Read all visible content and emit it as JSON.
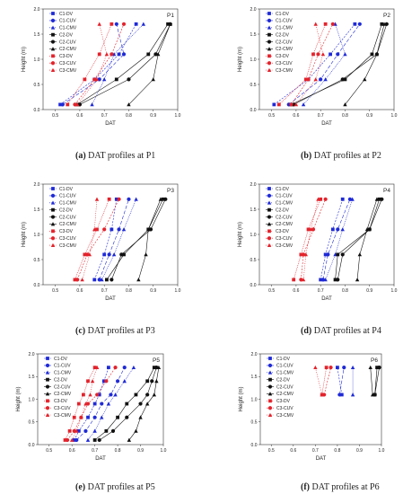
{
  "legend_entries": [
    {
      "label": "C1-DV",
      "color": "#1f2ad6",
      "dash": "2,1.5",
      "marker": "square"
    },
    {
      "label": "C1-CUV",
      "color": "#1f2ad6",
      "dash": "4,2",
      "marker": "circle"
    },
    {
      "label": "C1-CMV",
      "color": "#1f2ad6",
      "dash": "1,1",
      "marker": "triangle"
    },
    {
      "label": "C2-DV",
      "color": "#111111",
      "dash": "",
      "marker": "square"
    },
    {
      "label": "C2-CUV",
      "color": "#111111",
      "dash": "",
      "marker": "circle"
    },
    {
      "label": "C2-CMV",
      "color": "#111111",
      "dash": "",
      "marker": "triangle"
    },
    {
      "label": "C3-DV",
      "color": "#e3232c",
      "dash": "1,1",
      "marker": "square"
    },
    {
      "label": "C3-CUV",
      "color": "#e3232c",
      "dash": "2,1.5",
      "marker": "circle"
    },
    {
      "label": "C3-CMV",
      "color": "#e3232c",
      "dash": "1,1.5",
      "marker": "triangle"
    }
  ],
  "chart_data": [
    {
      "type": "line",
      "panel_label": "P1",
      "caption_letter": "(a)",
      "caption_text": "DAT profiles at P1",
      "xlabel": "DAT",
      "ylabel": "Height (m)",
      "xlim": [
        0.45,
        1.0
      ],
      "ylim": [
        0.0,
        2.0
      ],
      "xticks": [
        "0.5",
        "0.6",
        "0.7",
        "0.8",
        "0.9",
        "1.0"
      ],
      "yticks": [
        "0.0",
        "0.5",
        "1.0",
        "1.5",
        "2.0"
      ],
      "heights": [
        0.1,
        0.6,
        1.1,
        1.7
      ],
      "series": [
        {
          "name": "C1-DV",
          "x": [
            0.52,
            0.66,
            0.76,
            0.83
          ]
        },
        {
          "name": "C1-CUV",
          "x": [
            0.53,
            0.68,
            0.78,
            0.75
          ]
        },
        {
          "name": "C1-CMV",
          "x": [
            0.65,
            0.7,
            0.74,
            0.86
          ]
        },
        {
          "name": "C2-DV",
          "x": [
            0.59,
            0.75,
            0.88,
            0.96
          ]
        },
        {
          "name": "C2-CUV",
          "x": [
            0.6,
            0.8,
            0.91,
            0.97
          ]
        },
        {
          "name": "C2-CMV",
          "x": [
            0.8,
            0.9,
            0.92,
            0.97
          ]
        },
        {
          "name": "C3-DV",
          "x": [
            0.55,
            0.62,
            0.68,
            0.73
          ]
        },
        {
          "name": "C3-CUV",
          "x": [
            0.58,
            0.66,
            0.73,
            0.78
          ]
        },
        {
          "name": "C3-CMV",
          "x": [
            0.59,
            0.67,
            0.71,
            0.68
          ]
        }
      ]
    },
    {
      "type": "line",
      "panel_label": "P2",
      "caption_letter": "(b)",
      "caption_text": "DAT profiles at P2",
      "xlabel": "DAT",
      "ylabel": "Height (m)",
      "xlim": [
        0.45,
        1.0
      ],
      "ylim": [
        0.0,
        2.0
      ],
      "xticks": [
        "0.5",
        "0.6",
        "0.7",
        "0.8",
        "0.9",
        "1.0"
      ],
      "yticks": [
        "0.0",
        "0.5",
        "1.0",
        "1.5",
        "2.0"
      ],
      "heights": [
        0.1,
        0.6,
        1.1,
        1.7
      ],
      "series": [
        {
          "name": "C1-DV",
          "x": [
            0.51,
            0.65,
            0.74,
            0.84
          ]
        },
        {
          "name": "C1-CUV",
          "x": [
            0.57,
            0.7,
            0.77,
            0.86
          ]
        },
        {
          "name": "C1-CMV",
          "x": [
            0.63,
            0.72,
            0.8,
            0.76
          ]
        },
        {
          "name": "C2-DV",
          "x": [
            0.58,
            0.8,
            0.91,
            0.95
          ]
        },
        {
          "name": "C2-CUV",
          "x": [
            0.59,
            0.79,
            0.93,
            0.97
          ]
        },
        {
          "name": "C2-CMV",
          "x": [
            0.8,
            0.88,
            0.93,
            0.96
          ]
        },
        {
          "name": "C3-DV",
          "x": [
            0.53,
            0.64,
            0.67,
            0.72
          ]
        },
        {
          "name": "C3-CUV",
          "x": [
            0.58,
            0.65,
            0.69,
            0.75
          ]
        },
        {
          "name": "C3-CMV",
          "x": [
            0.6,
            0.68,
            0.71,
            0.68
          ]
        }
      ]
    },
    {
      "type": "line",
      "panel_label": "P3",
      "caption_letter": "(c)",
      "caption_text": "DAT profiles at P3",
      "xlabel": "DAT",
      "ylabel": "Height (m)",
      "xlim": [
        0.45,
        1.0
      ],
      "ylim": [
        0.0,
        2.0
      ],
      "xticks": [
        "0.5",
        "0.6",
        "0.7",
        "0.8",
        "0.9",
        "1.0"
      ],
      "yticks": [
        "0.0",
        "0.5",
        "1.0",
        "1.5",
        "2.0"
      ],
      "heights": [
        0.1,
        0.6,
        1.1,
        1.7
      ],
      "series": [
        {
          "name": "C1-DV",
          "x": [
            0.66,
            0.7,
            0.73,
            0.75
          ]
        },
        {
          "name": "C1-CUV",
          "x": [
            0.68,
            0.72,
            0.76,
            0.8
          ]
        },
        {
          "name": "C1-CMV",
          "x": [
            0.69,
            0.74,
            0.78,
            0.83
          ]
        },
        {
          "name": "C2-DV",
          "x": [
            0.71,
            0.78,
            0.88,
            0.94
          ]
        },
        {
          "name": "C2-CUV",
          "x": [
            0.73,
            0.77,
            0.89,
            0.95
          ]
        },
        {
          "name": "C2-CMV",
          "x": [
            0.84,
            0.87,
            0.88,
            0.93
          ]
        },
        {
          "name": "C3-DV",
          "x": [
            0.58,
            0.62,
            0.67,
            0.72
          ]
        },
        {
          "name": "C3-CUV",
          "x": [
            0.59,
            0.63,
            0.7,
            0.76
          ]
        },
        {
          "name": "C3-CMV",
          "x": [
            0.61,
            0.64,
            0.66,
            0.67
          ]
        }
      ]
    },
    {
      "type": "line",
      "panel_label": "P4",
      "caption_letter": "(d)",
      "caption_text": "DAT profiles at P4",
      "xlabel": "DAT",
      "ylabel": "Height (m)",
      "xlim": [
        0.45,
        1.0
      ],
      "ylim": [
        0.0,
        2.0
      ],
      "xticks": [
        "0.5",
        "0.6",
        "0.7",
        "0.8",
        "0.9",
        "1.0"
      ],
      "yticks": [
        "0.0",
        "0.5",
        "1.0",
        "1.5",
        "2.0"
      ],
      "heights": [
        0.1,
        0.6,
        1.1,
        1.7
      ],
      "series": [
        {
          "name": "C1-DV",
          "x": [
            0.7,
            0.72,
            0.75,
            0.79
          ]
        },
        {
          "name": "C1-CUV",
          "x": [
            0.71,
            0.73,
            0.77,
            0.82
          ]
        },
        {
          "name": "C1-CMV",
          "x": [
            0.72,
            0.76,
            0.79,
            0.83
          ]
        },
        {
          "name": "C2-DV",
          "x": [
            0.76,
            0.77,
            0.9,
            0.94
          ]
        },
        {
          "name": "C2-CUV",
          "x": [
            0.77,
            0.79,
            0.9,
            0.95
          ]
        },
        {
          "name": "C2-CMV",
          "x": [
            0.85,
            0.86,
            0.89,
            0.93
          ]
        },
        {
          "name": "C3-DV",
          "x": [
            0.59,
            0.62,
            0.65,
            0.7
          ]
        },
        {
          "name": "C3-CUV",
          "x": [
            0.62,
            0.63,
            0.67,
            0.72
          ]
        },
        {
          "name": "C3-CMV",
          "x": [
            0.63,
            0.64,
            0.66,
            0.69
          ]
        }
      ]
    },
    {
      "type": "line",
      "panel_label": "P5",
      "caption_letter": "(e)",
      "caption_text": "DAT profiles at P5",
      "xlabel": "DAT",
      "ylabel": "Height (m)",
      "xlim": [
        0.45,
        1.0
      ],
      "ylim": [
        0.0,
        2.0
      ],
      "xticks": [
        "0.5",
        "0.6",
        "0.7",
        "0.8",
        "0.9",
        "1.0"
      ],
      "yticks": [
        "0.0",
        "0.5",
        "1.0",
        "1.5",
        "2.0"
      ],
      "heights": [
        0.1,
        0.3,
        0.6,
        0.9,
        1.1,
        1.4,
        1.7
      ],
      "series": [
        {
          "name": "C1-DV",
          "x": [
            0.61,
            0.63,
            0.67,
            0.7,
            0.72,
            0.74,
            0.76
          ]
        },
        {
          "name": "C1-CUV",
          "x": [
            0.62,
            0.66,
            0.7,
            0.73,
            0.77,
            0.8,
            0.83
          ]
        },
        {
          "name": "C1-CMV",
          "x": [
            0.67,
            0.7,
            0.73,
            0.76,
            0.79,
            0.83,
            0.87
          ]
        },
        {
          "name": "C2-DV",
          "x": [
            0.7,
            0.75,
            0.8,
            0.84,
            0.88,
            0.93,
            0.96
          ]
        },
        {
          "name": "C2-CUV",
          "x": [
            0.72,
            0.78,
            0.84,
            0.9,
            0.93,
            0.95,
            0.97
          ]
        },
        {
          "name": "C2-CMV",
          "x": [
            0.85,
            0.88,
            0.9,
            0.93,
            0.96,
            0.97,
            0.98
          ]
        },
        {
          "name": "C3-DV",
          "x": [
            0.57,
            0.59,
            0.61,
            0.63,
            0.65,
            0.67,
            0.7
          ]
        },
        {
          "name": "C3-CUV",
          "x": [
            0.58,
            0.61,
            0.64,
            0.67,
            0.71,
            0.75,
            0.79
          ]
        },
        {
          "name": "C3-CMV",
          "x": [
            0.6,
            0.62,
            0.64,
            0.66,
            0.68,
            0.69,
            0.71
          ]
        }
      ]
    },
    {
      "type": "line",
      "panel_label": "P6",
      "caption_letter": "(f)",
      "caption_text": "DAT profiles at P6",
      "xlabel": "DAT",
      "ylabel": "Height (m)",
      "xlim": [
        0.45,
        1.0
      ],
      "ylim": [
        0.0,
        2.0
      ],
      "xticks": [
        "0.5",
        "0.6",
        "0.7",
        "0.8",
        "0.9",
        "1.0"
      ],
      "yticks": [
        "0.0",
        "0.5",
        "1.0",
        "1.5",
        "2.0"
      ],
      "heights": [
        1.1,
        1.7
      ],
      "series": [
        {
          "name": "C1-DV",
          "x": [
            0.82,
            0.8
          ]
        },
        {
          "name": "C1-CUV",
          "x": [
            0.81,
            0.83
          ]
        },
        {
          "name": "C1-CMV",
          "x": [
            0.87,
            0.87
          ]
        },
        {
          "name": "C2-DV",
          "x": [
            0.97,
            0.98
          ]
        },
        {
          "name": "C2-CUV",
          "x": [
            0.97,
            0.99
          ]
        },
        {
          "name": "C2-CMV",
          "x": [
            0.96,
            0.95
          ]
        },
        {
          "name": "C3-DV",
          "x": [
            0.73,
            0.75
          ]
        },
        {
          "name": "C3-CUV",
          "x": [
            0.74,
            0.77
          ]
        },
        {
          "name": "C3-CMV",
          "x": [
            0.73,
            0.7
          ]
        }
      ]
    }
  ]
}
